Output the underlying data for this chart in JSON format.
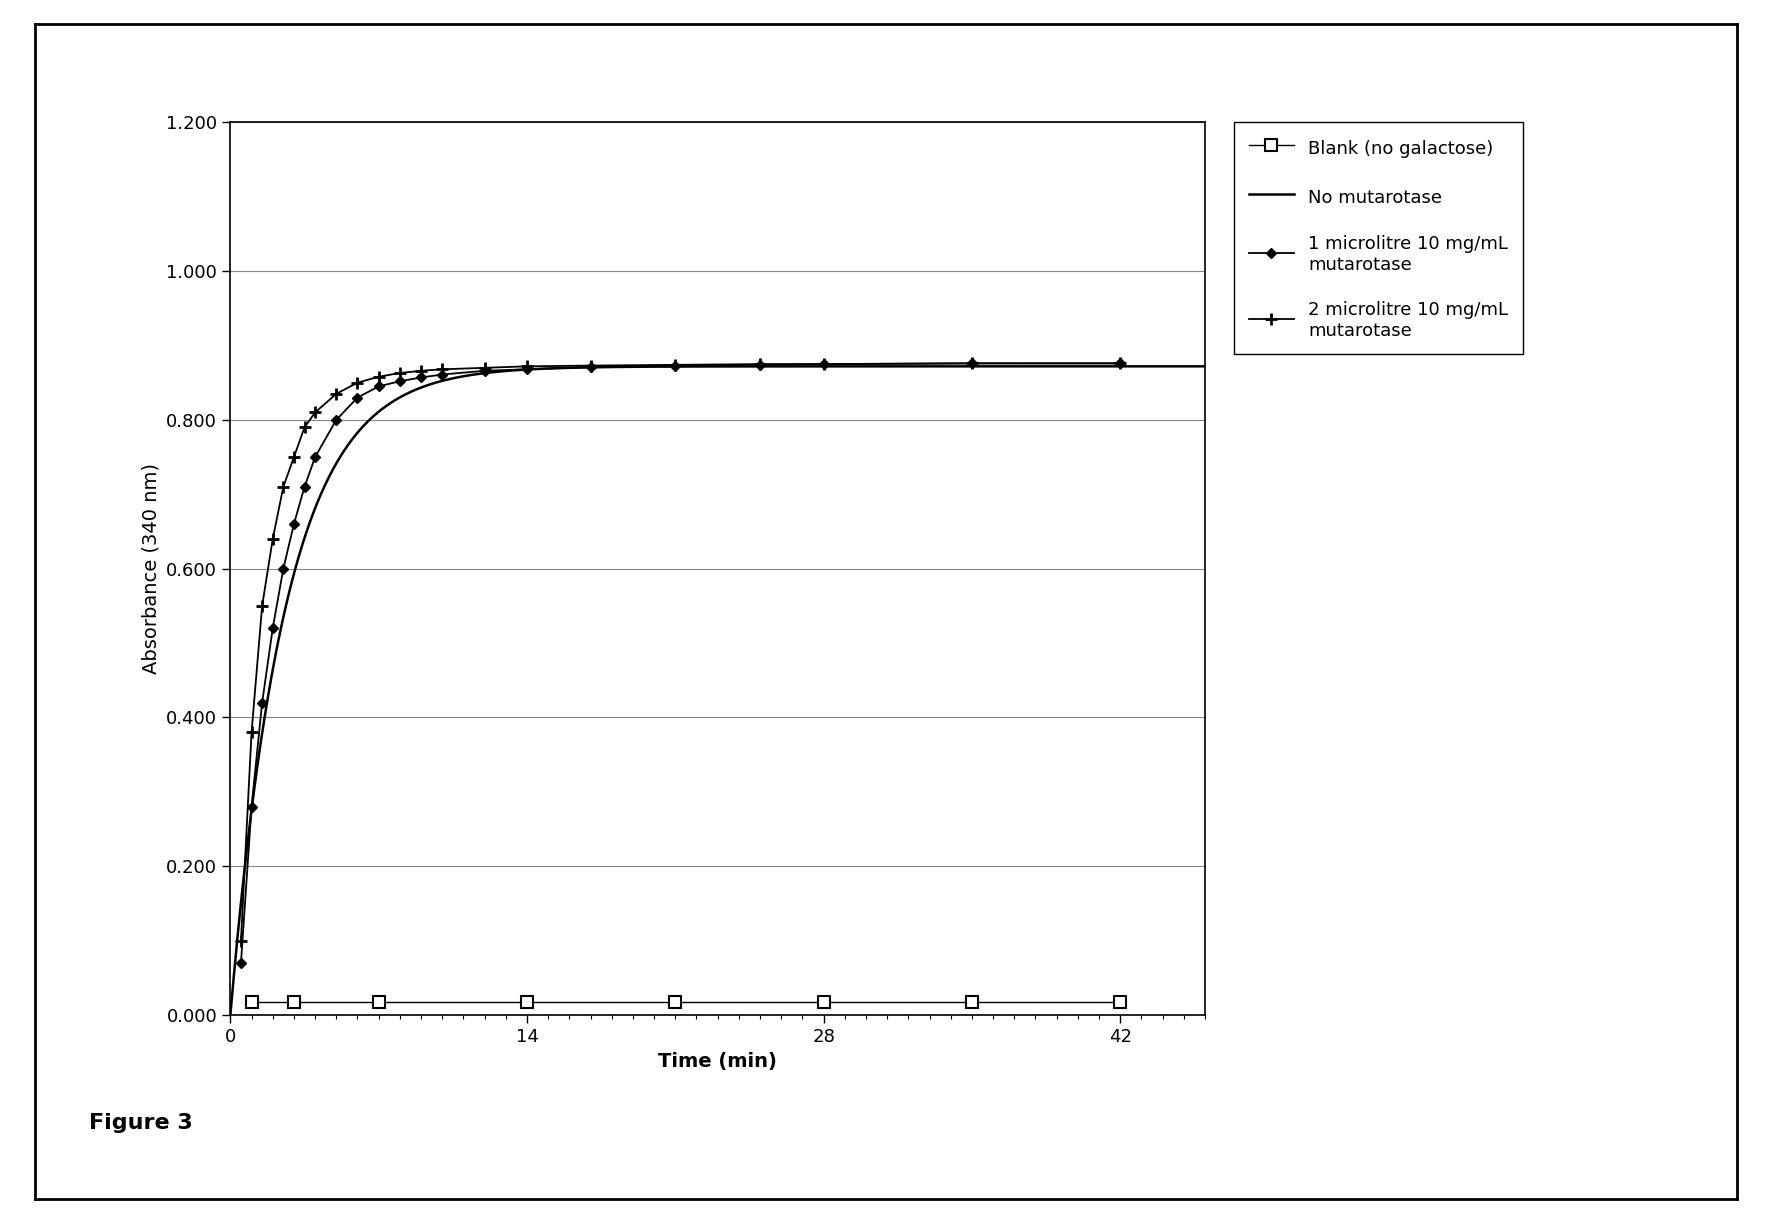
{
  "ylabel": "Absorbance (340 nm)",
  "xlabel": "Time (min)",
  "ylim": [
    0.0,
    1.2
  ],
  "xlim": [
    0,
    46
  ],
  "yticks": [
    0.0,
    0.2,
    0.4,
    0.6,
    0.8,
    1.0,
    1.2
  ],
  "xticks": [
    0,
    14,
    28,
    42
  ],
  "figure_caption": "Figure 3",
  "legend_entries": [
    "Blank (no galactose)",
    "No mutarotase",
    "1 microlitre 10 mg/mL\nmutarotase",
    "2 microlitre 10 mg/mL\nmutarotase"
  ],
  "blank_x": [
    1,
    3,
    7,
    14,
    21,
    28,
    35,
    42
  ],
  "blank_y": [
    0.018,
    0.018,
    0.018,
    0.018,
    0.018,
    0.018,
    0.018,
    0.018
  ],
  "no_mut_params": {
    "A": 0.872,
    "k": 0.38,
    "t0": 0.0
  },
  "mut1_x": [
    0.5,
    1,
    1.5,
    2,
    2.5,
    3,
    3.5,
    4,
    5,
    6,
    7,
    8,
    9,
    10,
    12,
    14,
    17,
    21,
    25,
    28,
    35,
    42
  ],
  "mut1_y": [
    0.07,
    0.28,
    0.42,
    0.52,
    0.6,
    0.66,
    0.71,
    0.75,
    0.8,
    0.83,
    0.845,
    0.852,
    0.857,
    0.861,
    0.866,
    0.868,
    0.871,
    0.873,
    0.874,
    0.875,
    0.876,
    0.876
  ],
  "mut2_x": [
    0.5,
    1,
    1.5,
    2,
    2.5,
    3,
    3.5,
    4,
    5,
    6,
    7,
    8,
    9,
    10,
    12,
    14,
    17,
    21,
    25,
    28,
    35,
    42
  ],
  "mut2_y": [
    0.1,
    0.38,
    0.55,
    0.64,
    0.71,
    0.75,
    0.79,
    0.81,
    0.835,
    0.85,
    0.858,
    0.863,
    0.866,
    0.868,
    0.87,
    0.872,
    0.873,
    0.874,
    0.875,
    0.875,
    0.876,
    0.876
  ],
  "line_color": "#000000",
  "background_color": "#ffffff",
  "grid_color": "#888888",
  "font_size_label": 14,
  "font_size_tick": 13,
  "font_size_legend": 13,
  "font_size_caption": 16
}
